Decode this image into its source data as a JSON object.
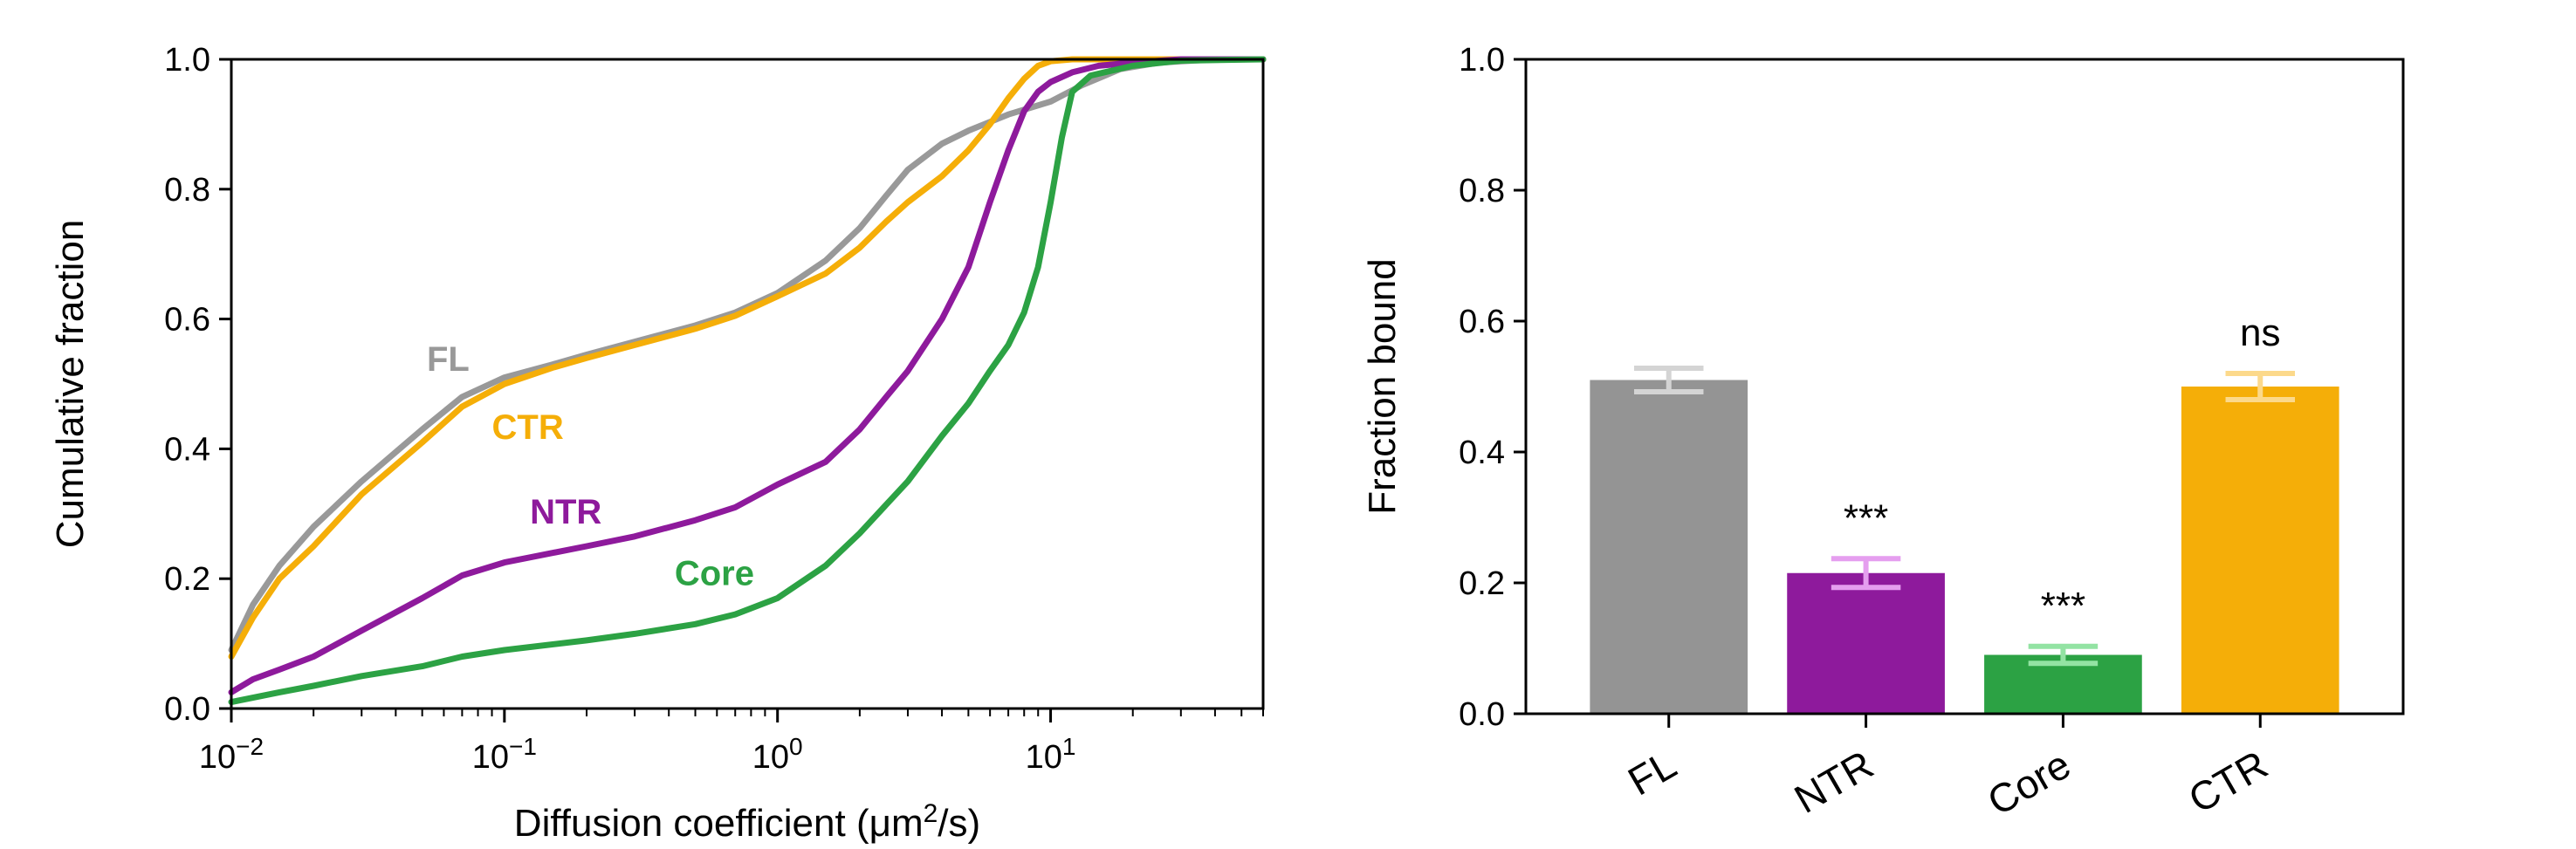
{
  "chart_data": [
    {
      "type": "line",
      "xlabel": "Diffusion coefficient (μm²/s)",
      "xlabel_parts": [
        "Diffusion coefficient (μm",
        "2",
        "/s)"
      ],
      "ylabel": "Cumulative fraction",
      "xscale": "log",
      "xlim": [
        0.01,
        60
      ],
      "ylim": [
        0,
        1.0
      ],
      "xticks": [
        0.01,
        0.1,
        1,
        10
      ],
      "xtick_labels": [
        {
          "base": "10",
          "exp": "−2"
        },
        {
          "base": "10",
          "exp": "−1"
        },
        {
          "base": "10",
          "exp": "0"
        },
        {
          "base": "10",
          "exp": "1"
        }
      ],
      "yticks": [
        0.0,
        0.2,
        0.4,
        0.6,
        0.8,
        1.0
      ],
      "ytick_labels": [
        "0.0",
        "0.2",
        "0.4",
        "0.6",
        "0.8",
        "1.0"
      ],
      "grid": false,
      "legend": "none",
      "series": [
        {
          "name": "FL",
          "color": "#999999",
          "label_at": [
            0.052,
            0.52
          ],
          "points": [
            [
              0.01,
              0.09
            ],
            [
              0.012,
              0.16
            ],
            [
              0.015,
              0.22
            ],
            [
              0.02,
              0.28
            ],
            [
              0.03,
              0.35
            ],
            [
              0.05,
              0.43
            ],
            [
              0.07,
              0.48
            ],
            [
              0.1,
              0.51
            ],
            [
              0.15,
              0.53
            ],
            [
              0.2,
              0.545
            ],
            [
              0.3,
              0.565
            ],
            [
              0.5,
              0.59
            ],
            [
              0.7,
              0.61
            ],
            [
              1.0,
              0.64
            ],
            [
              1.5,
              0.69
            ],
            [
              2.0,
              0.74
            ],
            [
              2.5,
              0.79
            ],
            [
              3.0,
              0.83
            ],
            [
              4.0,
              0.87
            ],
            [
              5.0,
              0.89
            ],
            [
              7.0,
              0.915
            ],
            [
              10.0,
              0.935
            ],
            [
              13.0,
              0.96
            ],
            [
              18.0,
              0.985
            ],
            [
              25.0,
              0.995
            ],
            [
              40.0,
              1.0
            ],
            [
              60.0,
              1.0
            ]
          ]
        },
        {
          "name": "CTR",
          "color": "#F5AE08",
          "label_at": [
            0.09,
            0.415
          ],
          "points": [
            [
              0.01,
              0.08
            ],
            [
              0.012,
              0.14
            ],
            [
              0.015,
              0.2
            ],
            [
              0.02,
              0.25
            ],
            [
              0.03,
              0.33
            ],
            [
              0.05,
              0.41
            ],
            [
              0.07,
              0.465
            ],
            [
              0.1,
              0.5
            ],
            [
              0.15,
              0.525
            ],
            [
              0.2,
              0.54
            ],
            [
              0.3,
              0.56
            ],
            [
              0.5,
              0.585
            ],
            [
              0.7,
              0.605
            ],
            [
              1.0,
              0.635
            ],
            [
              1.5,
              0.67
            ],
            [
              2.0,
              0.71
            ],
            [
              2.5,
              0.75
            ],
            [
              3.0,
              0.78
            ],
            [
              4.0,
              0.82
            ],
            [
              5.0,
              0.86
            ],
            [
              6.0,
              0.9
            ],
            [
              7.0,
              0.94
            ],
            [
              8.0,
              0.97
            ],
            [
              9.0,
              0.99
            ],
            [
              10.0,
              0.997
            ],
            [
              12.0,
              1.0
            ],
            [
              60.0,
              1.0
            ]
          ]
        },
        {
          "name": "NTR",
          "color": "#8E1A9C",
          "label_at": [
            0.124,
            0.285
          ],
          "points": [
            [
              0.01,
              0.025
            ],
            [
              0.012,
              0.045
            ],
            [
              0.015,
              0.06
            ],
            [
              0.02,
              0.08
            ],
            [
              0.03,
              0.12
            ],
            [
              0.05,
              0.17
            ],
            [
              0.07,
              0.205
            ],
            [
              0.1,
              0.225
            ],
            [
              0.2,
              0.25
            ],
            [
              0.3,
              0.265
            ],
            [
              0.5,
              0.29
            ],
            [
              0.7,
              0.31
            ],
            [
              1.0,
              0.345
            ],
            [
              1.5,
              0.38
            ],
            [
              2.0,
              0.43
            ],
            [
              2.5,
              0.48
            ],
            [
              3.0,
              0.52
            ],
            [
              4.0,
              0.6
            ],
            [
              5.0,
              0.68
            ],
            [
              6.0,
              0.78
            ],
            [
              7.0,
              0.86
            ],
            [
              8.0,
              0.92
            ],
            [
              9.0,
              0.95
            ],
            [
              10.0,
              0.965
            ],
            [
              12.0,
              0.98
            ],
            [
              15.0,
              0.99
            ],
            [
              20.0,
              0.995
            ],
            [
              30.0,
              1.0
            ],
            [
              60.0,
              1.0
            ]
          ]
        },
        {
          "name": "Core",
          "color": "#2CA244",
          "label_at": [
            0.42,
            0.19
          ],
          "points": [
            [
              0.01,
              0.01
            ],
            [
              0.015,
              0.025
            ],
            [
              0.02,
              0.035
            ],
            [
              0.03,
              0.05
            ],
            [
              0.05,
              0.065
            ],
            [
              0.07,
              0.08
            ],
            [
              0.1,
              0.09
            ],
            [
              0.2,
              0.105
            ],
            [
              0.3,
              0.115
            ],
            [
              0.5,
              0.13
            ],
            [
              0.7,
              0.145
            ],
            [
              1.0,
              0.17
            ],
            [
              1.5,
              0.22
            ],
            [
              2.0,
              0.27
            ],
            [
              3.0,
              0.35
            ],
            [
              4.0,
              0.42
            ],
            [
              5.0,
              0.47
            ],
            [
              6.0,
              0.52
            ],
            [
              7.0,
              0.56
            ],
            [
              8.0,
              0.61
            ],
            [
              9.0,
              0.68
            ],
            [
              10.0,
              0.78
            ],
            [
              11.0,
              0.88
            ],
            [
              12.0,
              0.95
            ],
            [
              14.0,
              0.975
            ],
            [
              20.0,
              0.99
            ],
            [
              30.0,
              0.998
            ],
            [
              60.0,
              1.0
            ]
          ]
        }
      ]
    },
    {
      "type": "bar",
      "ylabel": "Fraction bound",
      "xlabel": "",
      "ylim": [
        0,
        1.0
      ],
      "yticks": [
        0.0,
        0.2,
        0.4,
        0.6,
        0.8,
        1.0
      ],
      "ytick_labels": [
        "0.0",
        "0.2",
        "0.4",
        "0.6",
        "0.8",
        "1.0"
      ],
      "grid": false,
      "legend": "none",
      "categories": [
        "FL",
        "NTR",
        "Core",
        "CTR"
      ],
      "values": [
        0.51,
        0.215,
        0.09,
        0.5
      ],
      "errors": [
        0.018,
        0.022,
        0.013,
        0.02
      ],
      "colors": [
        "#949494",
        "#8E1A9C",
        "#2CA244",
        "#F5AE08"
      ],
      "error_colors": [
        "#D4D4D4",
        "#E59EEF",
        "#93E3A3",
        "#FCD98B"
      ],
      "significance": [
        "",
        "***",
        "***",
        "ns"
      ]
    }
  ]
}
